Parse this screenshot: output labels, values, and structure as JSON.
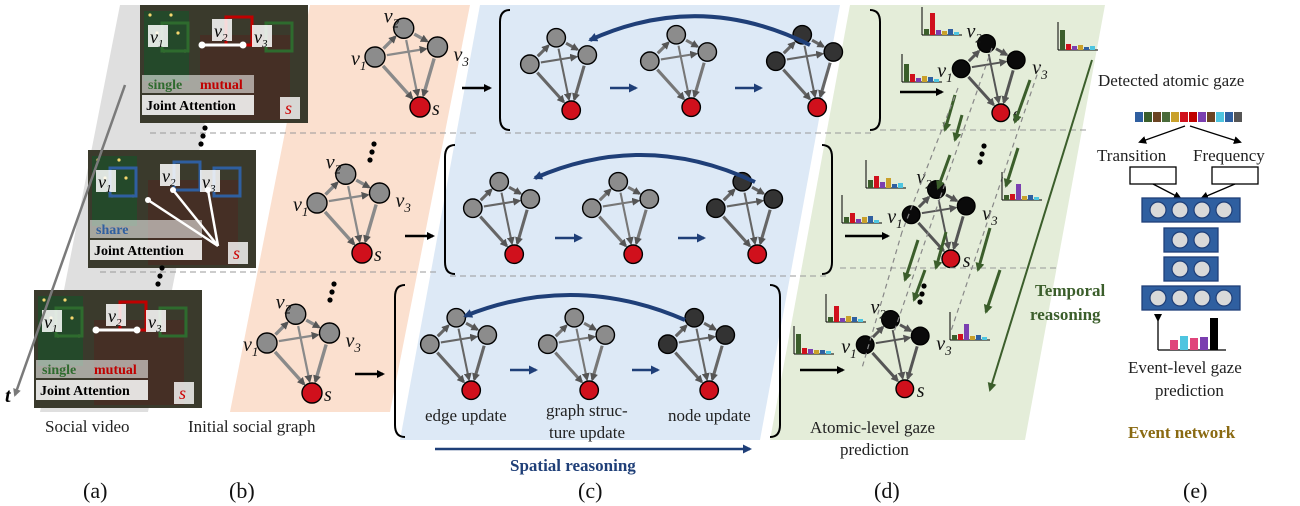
{
  "panels": {
    "a": {
      "letter": "(a)",
      "caption": "Social video",
      "time_axis": "t",
      "frames": [
        {
          "tag1": "single",
          "tag2": "mutual",
          "event": "Joint Attention",
          "special": "s"
        },
        {
          "tag1": "share",
          "tag2": "",
          "event": "Joint Attention",
          "special": "s"
        },
        {
          "tag1": "single",
          "tag2": "mutual",
          "event": "Joint Attention",
          "special": "s"
        }
      ],
      "box_labels": [
        "v",
        "v",
        "v"
      ],
      "box_subs": [
        "1",
        "2",
        "3"
      ]
    },
    "b": {
      "letter": "(b)",
      "caption": "Initial social graph"
    },
    "c": {
      "letter": "(c)",
      "steps": [
        "edge update",
        "graph struc-",
        "ture update",
        "node update"
      ],
      "title": "Spatial reasoning"
    },
    "d": {
      "letter": "(d)",
      "caption_lines": [
        "Atomic-level gaze",
        "prediction"
      ],
      "side_title_lines": [
        "Temporal",
        "reasoning"
      ]
    },
    "e": {
      "letter": "(e)",
      "top": "Detected atomic gaze",
      "left_branch": "Transition",
      "right_branch": "Frequency",
      "output_lines": [
        "Event-level gaze",
        "prediction"
      ],
      "title": "Event network"
    }
  },
  "graph_labels": {
    "v": "v",
    "s": "s",
    "subs": [
      "1",
      "2",
      "3"
    ]
  },
  "colors": {
    "spatial": "#1f3f78",
    "temporal": "#3b5e2b",
    "event": "#8a6a12",
    "mutual": "#c00000",
    "single": "#2e6b2e",
    "share": "#2f5fa0",
    "special": "#cc0000"
  }
}
